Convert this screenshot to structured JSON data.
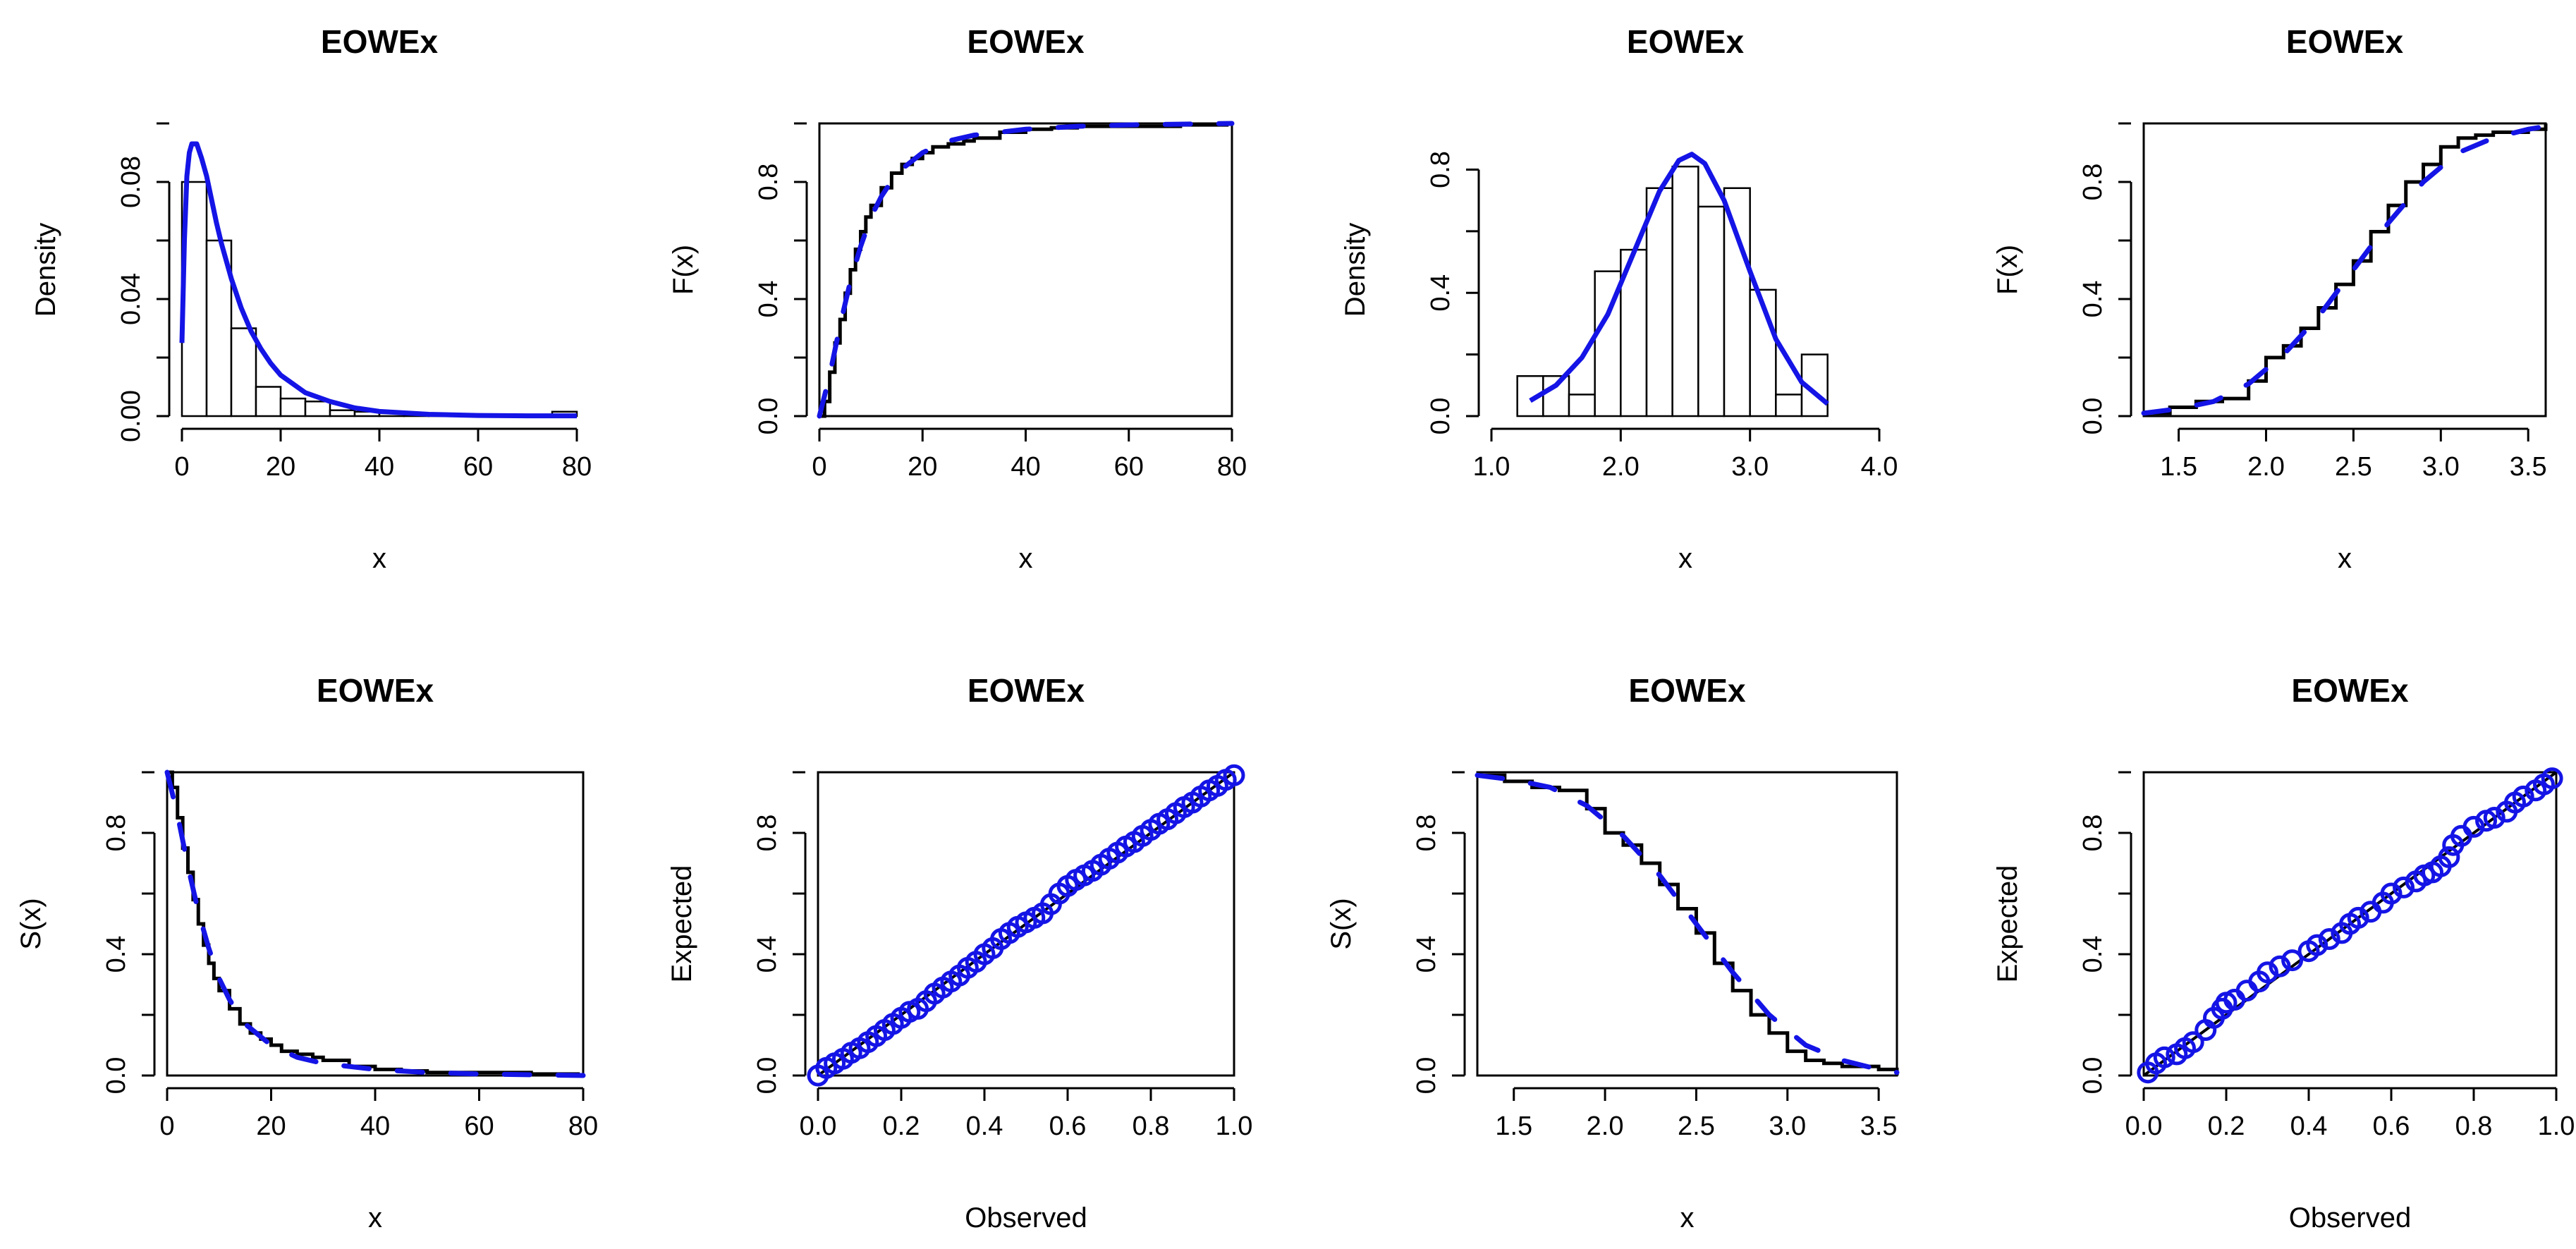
{
  "colors": {
    "fit": "#1414e6",
    "empirical": "#000000",
    "hist_fill": "#ffffff",
    "axis": "#000000"
  },
  "chart_data": [
    {
      "id": "p1",
      "type": "histogram+density",
      "title": "EOWEx",
      "xlabel": "x",
      "ylabel": "Density",
      "xlim": [
        0,
        80
      ],
      "ylim": [
        0,
        0.1
      ],
      "box": false,
      "xticks": [
        0,
        20,
        40,
        60,
        80
      ],
      "xtick_labels": [
        "0",
        "20",
        "40",
        "60",
        "80"
      ],
      "yticks": [
        0,
        0.04,
        0.08
      ],
      "ytick_labels": [
        "0.00",
        "0.04",
        "0.08"
      ],
      "bins": [
        [
          0,
          5,
          0.08
        ],
        [
          5,
          10,
          0.06
        ],
        [
          10,
          15,
          0.03
        ],
        [
          15,
          20,
          0.01
        ],
        [
          20,
          25,
          0.006
        ],
        [
          25,
          30,
          0.005
        ],
        [
          30,
          35,
          0.002
        ],
        [
          35,
          40,
          0.0015
        ],
        [
          40,
          45,
          0.001
        ],
        [
          45,
          50,
          0.0005
        ],
        [
          50,
          55,
          0.0003
        ],
        [
          55,
          60,
          0
        ],
        [
          60,
          65,
          0
        ],
        [
          65,
          70,
          0
        ],
        [
          70,
          75,
          0
        ],
        [
          75,
          80,
          0.0015
        ]
      ],
      "density": {
        "name": "EOWEx fit",
        "x": [
          0,
          0.5,
          1,
          1.5,
          2,
          3,
          4,
          5,
          6,
          7,
          8,
          10,
          12,
          14,
          16,
          18,
          20,
          25,
          30,
          35,
          40,
          50,
          60,
          70,
          80
        ],
        "y": [
          0.025,
          0.06,
          0.082,
          0.09,
          0.093,
          0.093,
          0.088,
          0.082,
          0.074,
          0.066,
          0.059,
          0.047,
          0.037,
          0.029,
          0.023,
          0.018,
          0.014,
          0.008,
          0.005,
          0.0028,
          0.0016,
          0.0006,
          0.0002,
          0.0001,
          0.0001
        ]
      }
    },
    {
      "id": "p2",
      "type": "cdf",
      "title": "EOWEx",
      "xlabel": "x",
      "ylabel": "F(x)",
      "xlim": [
        0,
        80
      ],
      "ylim": [
        0,
        1
      ],
      "box": true,
      "xticks": [
        0,
        20,
        40,
        60,
        80
      ],
      "xtick_labels": [
        "0",
        "20",
        "40",
        "60",
        "80"
      ],
      "yticks": [
        0,
        0.4,
        0.8
      ],
      "ytick_labels": [
        "0.0",
        "0.4",
        "0.8"
      ],
      "empirical": {
        "x": [
          0,
          1,
          2,
          3,
          4,
          5,
          6,
          7,
          8,
          9,
          10,
          12,
          14,
          16,
          18,
          20,
          22,
          25,
          28,
          30,
          35,
          40,
          45,
          50,
          60,
          70,
          79
        ],
        "y": [
          0,
          0.05,
          0.15,
          0.25,
          0.33,
          0.42,
          0.5,
          0.57,
          0.63,
          0.68,
          0.72,
          0.78,
          0.83,
          0.86,
          0.88,
          0.9,
          0.92,
          0.93,
          0.94,
          0.95,
          0.97,
          0.98,
          0.985,
          0.99,
          0.99,
          0.995,
          1
        ]
      },
      "fit": {
        "name": "EOWEx fit",
        "x": [
          0,
          2,
          4,
          6,
          8,
          10,
          12,
          15,
          20,
          25,
          30,
          40,
          50,
          60,
          80
        ],
        "y": [
          0,
          0.14,
          0.31,
          0.46,
          0.58,
          0.68,
          0.75,
          0.83,
          0.9,
          0.94,
          0.96,
          0.98,
          0.99,
          0.995,
          1
        ]
      }
    },
    {
      "id": "p3",
      "type": "histogram+density",
      "title": "EOWEx",
      "xlabel": "x",
      "ylabel": "Density",
      "xlim": [
        1,
        4
      ],
      "ylim": [
        0,
        0.95
      ],
      "box": false,
      "xticks": [
        1,
        2,
        3,
        4
      ],
      "xtick_labels": [
        "1.0",
        "2.0",
        "3.0",
        "4.0"
      ],
      "yticks": [
        0,
        0.4,
        0.8
      ],
      "ytick_labels": [
        "0.0",
        "0.4",
        "0.8"
      ],
      "bins": [
        [
          1.2,
          1.4,
          0.13
        ],
        [
          1.4,
          1.6,
          0.13
        ],
        [
          1.6,
          1.8,
          0.07
        ],
        [
          1.8,
          2.0,
          0.47
        ],
        [
          2.0,
          2.2,
          0.54
        ],
        [
          2.2,
          2.4,
          0.74
        ],
        [
          2.4,
          2.6,
          0.81
        ],
        [
          2.6,
          2.8,
          0.68
        ],
        [
          2.8,
          3.0,
          0.74
        ],
        [
          3.0,
          3.2,
          0.41
        ],
        [
          3.2,
          3.4,
          0.07
        ],
        [
          3.4,
          3.6,
          0.2
        ]
      ],
      "density": {
        "name": "EOWEx fit",
        "x": [
          1.3,
          1.5,
          1.7,
          1.9,
          2.1,
          2.3,
          2.45,
          2.55,
          2.65,
          2.8,
          3.0,
          3.2,
          3.4,
          3.6
        ],
        "y": [
          0.05,
          0.1,
          0.19,
          0.33,
          0.53,
          0.73,
          0.83,
          0.85,
          0.82,
          0.7,
          0.47,
          0.25,
          0.11,
          0.04
        ]
      }
    },
    {
      "id": "p4",
      "type": "cdf",
      "title": "EOWEx",
      "xlabel": "x",
      "ylabel": "F(x)",
      "xlim": [
        1.3,
        3.6
      ],
      "ylim": [
        0,
        1
      ],
      "box": true,
      "xticks": [
        1.5,
        2.0,
        2.5,
        3.0,
        3.5
      ],
      "xtick_labels": [
        "1.5",
        "2.0",
        "2.5",
        "3.0",
        "3.5"
      ],
      "yticks": [
        0,
        0.4,
        0.8
      ],
      "ytick_labels": [
        "0.0",
        "0.4",
        "0.8"
      ],
      "empirical": {
        "x": [
          1.3,
          1.45,
          1.6,
          1.75,
          1.9,
          2.0,
          2.1,
          2.2,
          2.3,
          2.4,
          2.5,
          2.6,
          2.7,
          2.8,
          2.9,
          3.0,
          3.1,
          3.2,
          3.3,
          3.4,
          3.5,
          3.6
        ],
        "y": [
          0.01,
          0.03,
          0.05,
          0.06,
          0.12,
          0.2,
          0.24,
          0.3,
          0.37,
          0.45,
          0.53,
          0.63,
          0.72,
          0.8,
          0.86,
          0.92,
          0.95,
          0.96,
          0.97,
          0.97,
          0.98,
          1.0
        ]
      },
      "fit": {
        "name": "EOWEx fit",
        "x": [
          1.3,
          1.5,
          1.7,
          1.9,
          2.1,
          2.3,
          2.5,
          2.7,
          2.9,
          3.1,
          3.3,
          3.5,
          3.6
        ],
        "y": [
          0.01,
          0.025,
          0.05,
          0.11,
          0.21,
          0.34,
          0.5,
          0.66,
          0.8,
          0.9,
          0.95,
          0.98,
          0.99
        ]
      }
    },
    {
      "id": "p5",
      "type": "survival",
      "title": "EOWEx",
      "xlabel": "x",
      "ylabel": "S(x)",
      "xlim": [
        0,
        80
      ],
      "ylim": [
        0,
        1
      ],
      "box": true,
      "xticks": [
        0,
        20,
        40,
        60,
        80
      ],
      "xtick_labels": [
        "0",
        "20",
        "40",
        "60",
        "80"
      ],
      "yticks": [
        0,
        0.4,
        0.8
      ],
      "ytick_labels": [
        "0.0",
        "0.4",
        "0.8"
      ],
      "empirical": {
        "x": [
          0,
          1,
          2,
          3,
          4,
          5,
          6,
          7,
          8,
          9,
          10,
          12,
          14,
          16,
          18,
          20,
          22,
          25,
          28,
          30,
          35,
          40,
          45,
          50,
          60,
          70,
          79
        ],
        "y": [
          1,
          0.95,
          0.85,
          0.75,
          0.67,
          0.58,
          0.5,
          0.43,
          0.37,
          0.32,
          0.28,
          0.22,
          0.17,
          0.14,
          0.12,
          0.1,
          0.08,
          0.07,
          0.06,
          0.05,
          0.03,
          0.02,
          0.015,
          0.01,
          0.01,
          0.005,
          0
        ]
      },
      "fit": {
        "name": "EOWEx fit",
        "x": [
          0,
          2,
          4,
          6,
          8,
          10,
          12,
          15,
          20,
          25,
          30,
          40,
          50,
          60,
          80
        ],
        "y": [
          1,
          0.86,
          0.69,
          0.54,
          0.42,
          0.32,
          0.25,
          0.17,
          0.1,
          0.06,
          0.04,
          0.02,
          0.01,
          0.005,
          0
        ]
      }
    },
    {
      "id": "p6",
      "type": "pp",
      "title": "EOWEx",
      "xlabel": "Observed",
      "ylabel": "Expected",
      "xlim": [
        0,
        1
      ],
      "ylim": [
        0,
        1
      ],
      "box": true,
      "xticks": [
        0,
        0.2,
        0.4,
        0.6,
        0.8,
        1.0
      ],
      "xtick_labels": [
        "0.0",
        "0.2",
        "0.4",
        "0.6",
        "0.8",
        "1.0"
      ],
      "yticks": [
        0,
        0.4,
        0.8
      ],
      "ytick_labels": [
        "0.0",
        "0.4",
        "0.8"
      ],
      "points": {
        "name": "EOWEx",
        "x": [
          0.0,
          0.02,
          0.04,
          0.06,
          0.08,
          0.1,
          0.12,
          0.14,
          0.16,
          0.18,
          0.2,
          0.22,
          0.24,
          0.26,
          0.28,
          0.3,
          0.32,
          0.34,
          0.36,
          0.38,
          0.4,
          0.42,
          0.44,
          0.46,
          0.48,
          0.5,
          0.52,
          0.54,
          0.56,
          0.58,
          0.6,
          0.62,
          0.64,
          0.66,
          0.68,
          0.7,
          0.72,
          0.74,
          0.76,
          0.78,
          0.8,
          0.82,
          0.84,
          0.86,
          0.88,
          0.9,
          0.92,
          0.94,
          0.96,
          0.98,
          1.0
        ],
        "y": [
          0.0,
          0.025,
          0.04,
          0.055,
          0.075,
          0.09,
          0.11,
          0.13,
          0.15,
          0.17,
          0.19,
          0.21,
          0.22,
          0.245,
          0.27,
          0.29,
          0.31,
          0.33,
          0.355,
          0.375,
          0.4,
          0.42,
          0.45,
          0.47,
          0.49,
          0.505,
          0.52,
          0.535,
          0.565,
          0.6,
          0.625,
          0.645,
          0.66,
          0.675,
          0.695,
          0.715,
          0.735,
          0.755,
          0.77,
          0.79,
          0.81,
          0.83,
          0.845,
          0.865,
          0.885,
          0.9,
          0.92,
          0.94,
          0.955,
          0.975,
          0.99
        ]
      },
      "reference": {
        "x": [
          0,
          1
        ],
        "y": [
          0,
          1
        ]
      }
    },
    {
      "id": "p7",
      "type": "survival",
      "title": "EOWEx",
      "xlabel": "x",
      "ylabel": "S(x)",
      "xlim": [
        1.3,
        3.6
      ],
      "ylim": [
        0,
        1
      ],
      "box": true,
      "xticks": [
        1.5,
        2.0,
        2.5,
        3.0,
        3.5
      ],
      "xtick_labels": [
        "1.5",
        "2.0",
        "2.5",
        "3.0",
        "3.5"
      ],
      "yticks": [
        0,
        0.4,
        0.8
      ],
      "ytick_labels": [
        "0.0",
        "0.4",
        "0.8"
      ],
      "empirical": {
        "x": [
          1.3,
          1.45,
          1.6,
          1.75,
          1.9,
          2.0,
          2.1,
          2.2,
          2.3,
          2.4,
          2.5,
          2.6,
          2.7,
          2.8,
          2.9,
          3.0,
          3.1,
          3.2,
          3.3,
          3.4,
          3.5,
          3.6
        ],
        "y": [
          0.99,
          0.97,
          0.95,
          0.94,
          0.88,
          0.8,
          0.76,
          0.7,
          0.63,
          0.55,
          0.47,
          0.37,
          0.28,
          0.2,
          0.14,
          0.08,
          0.05,
          0.04,
          0.03,
          0.03,
          0.02,
          0.0
        ]
      },
      "fit": {
        "name": "EOWEx fit",
        "x": [
          1.3,
          1.5,
          1.7,
          1.9,
          2.1,
          2.3,
          2.5,
          2.7,
          2.9,
          3.1,
          3.3,
          3.5,
          3.6
        ],
        "y": [
          0.99,
          0.975,
          0.95,
          0.89,
          0.79,
          0.66,
          0.5,
          0.34,
          0.2,
          0.1,
          0.05,
          0.02,
          0.01
        ]
      }
    },
    {
      "id": "p8",
      "type": "pp",
      "title": "EOWEx",
      "xlabel": "Observed",
      "ylabel": "Expected",
      "xlim": [
        0,
        1
      ],
      "ylim": [
        0,
        1
      ],
      "box": true,
      "xticks": [
        0,
        0.2,
        0.4,
        0.6,
        0.8,
        1.0
      ],
      "xtick_labels": [
        "0.0",
        "0.2",
        "0.4",
        "0.6",
        "0.8",
        "1.0"
      ],
      "yticks": [
        0,
        0.4,
        0.8
      ],
      "ytick_labels": [
        "0.0",
        "0.4",
        "0.8"
      ],
      "points": {
        "name": "EOWEx",
        "x": [
          0.01,
          0.03,
          0.05,
          0.08,
          0.1,
          0.12,
          0.15,
          0.17,
          0.19,
          0.2,
          0.22,
          0.25,
          0.28,
          0.3,
          0.33,
          0.36,
          0.4,
          0.42,
          0.45,
          0.48,
          0.5,
          0.52,
          0.55,
          0.58,
          0.6,
          0.63,
          0.66,
          0.68,
          0.7,
          0.72,
          0.74,
          0.75,
          0.77,
          0.8,
          0.83,
          0.85,
          0.88,
          0.9,
          0.92,
          0.95,
          0.97,
          0.99
        ],
        "y": [
          0.01,
          0.04,
          0.06,
          0.07,
          0.09,
          0.11,
          0.15,
          0.19,
          0.22,
          0.24,
          0.25,
          0.28,
          0.31,
          0.34,
          0.36,
          0.38,
          0.41,
          0.43,
          0.45,
          0.47,
          0.5,
          0.52,
          0.54,
          0.57,
          0.6,
          0.62,
          0.64,
          0.66,
          0.67,
          0.69,
          0.72,
          0.76,
          0.79,
          0.82,
          0.84,
          0.85,
          0.87,
          0.9,
          0.92,
          0.94,
          0.96,
          0.98
        ]
      },
      "reference": {
        "x": [
          0,
          1
        ],
        "y": [
          0,
          1
        ]
      }
    }
  ]
}
